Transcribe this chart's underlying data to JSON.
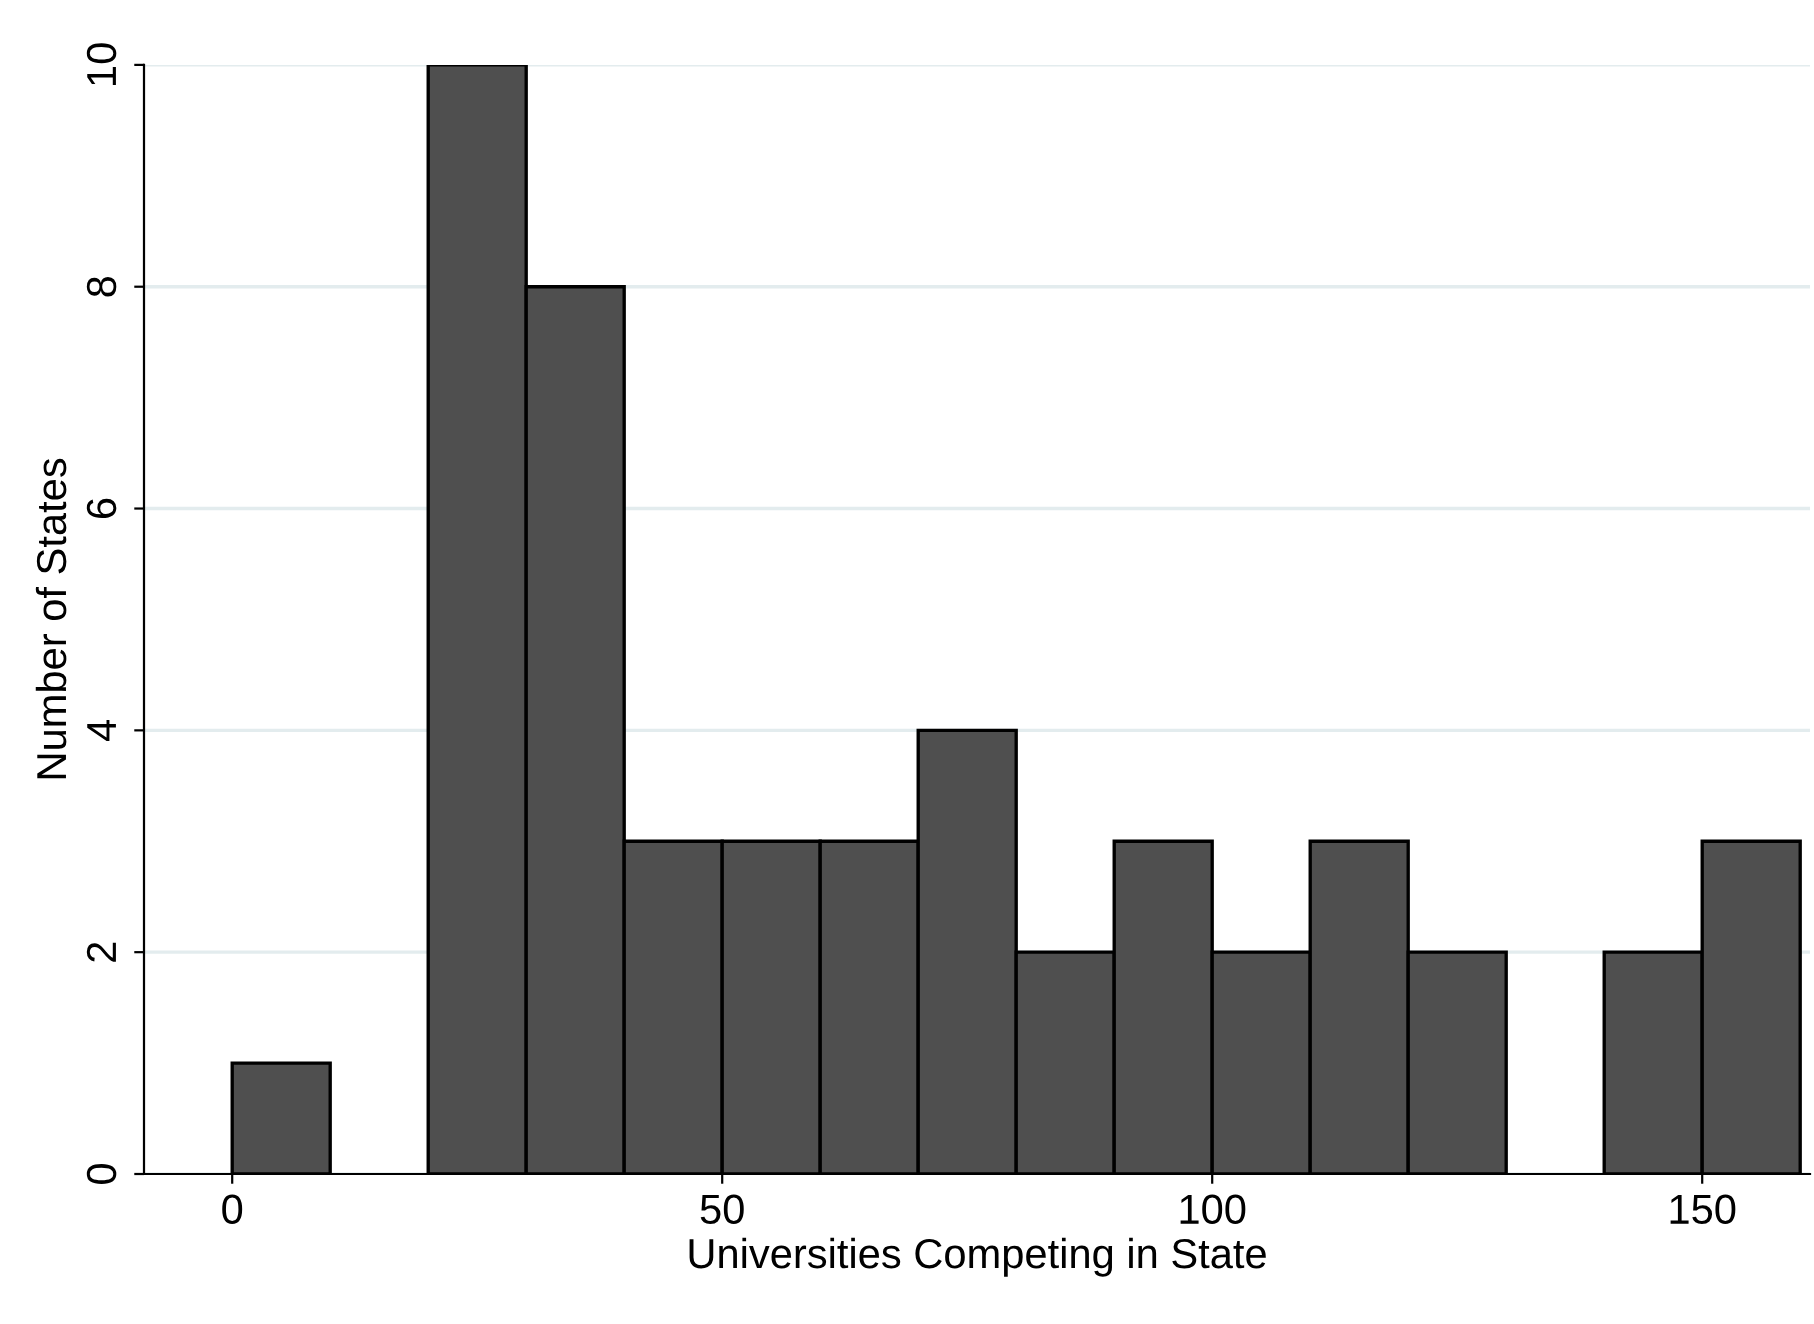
{
  "chart_data": {
    "type": "histogram",
    "xlabel": "Universities Competing in State",
    "ylabel": "Number of States",
    "bins": [
      0,
      10,
      20,
      30,
      40,
      50,
      60,
      70,
      80,
      90,
      100,
      110,
      120,
      130,
      140,
      150,
      160
    ],
    "values": [
      1,
      0,
      10,
      8,
      3,
      3,
      3,
      4,
      2,
      3,
      2,
      3,
      2,
      0,
      2,
      3
    ],
    "color": "#4f4f4f",
    "xlim": [
      -9,
      161
    ],
    "ylim": [
      0,
      10
    ],
    "xticks": [
      0,
      50,
      100,
      150
    ],
    "yticks": [
      0,
      2,
      4,
      6,
      8,
      10
    ],
    "grid": "y"
  }
}
